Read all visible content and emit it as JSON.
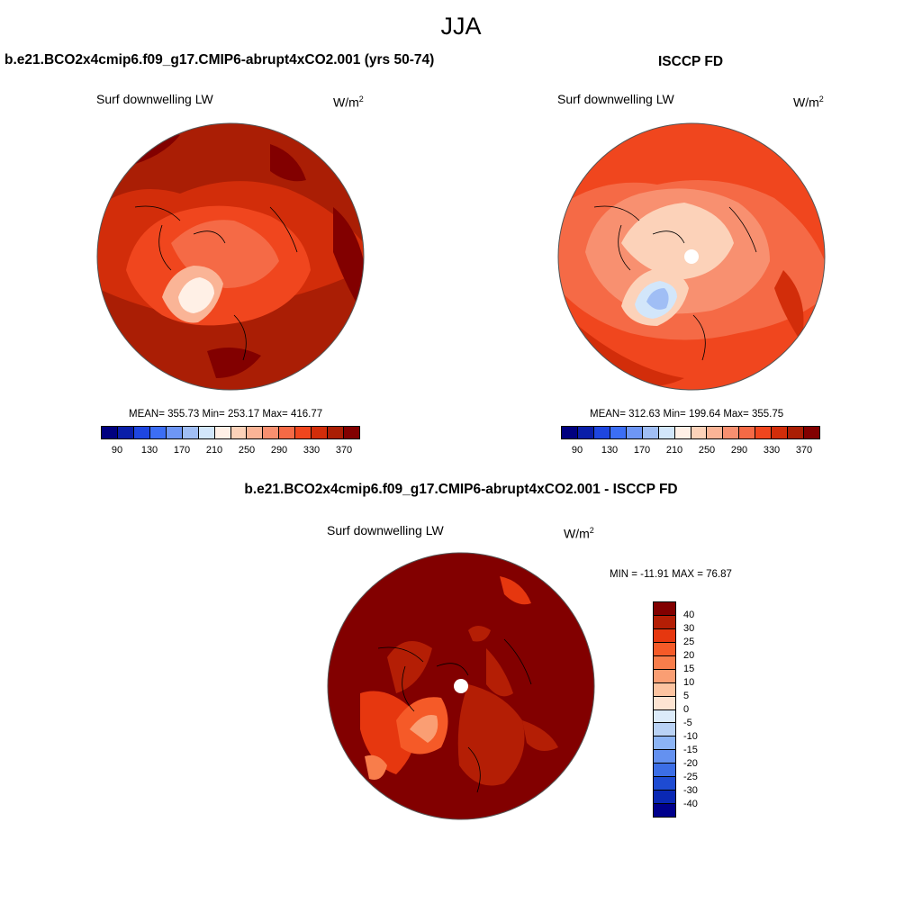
{
  "season": "JJA",
  "panels": {
    "model": {
      "title": "b.e21.BCO2x4cmip6.f09_g17.CMIP6-abrupt4xCO2.001 (yrs 50-74)",
      "variable": "Surf downwelling LW",
      "units_base": "W/m",
      "units_sup": "2",
      "stats": "MEAN= 355.73  Min= 253.17  Max= 416.77",
      "mean": 355.73,
      "min": 253.17,
      "max": 416.77
    },
    "obs": {
      "title": "ISCCP FD",
      "variable": "Surf downwelling LW",
      "units_base": "W/m",
      "units_sup": "2",
      "stats": "MEAN= 312.63  Min= 199.64  Max= 355.75",
      "mean": 312.63,
      "min": 199.64,
      "max": 355.75
    },
    "diff": {
      "title": "b.e21.BCO2x4cmip6.f09_g17.CMIP6-abrupt4xCO2.001 - ISCCP FD",
      "variable": "Surf downwelling LW",
      "units_base": "W/m",
      "units": "2",
      "stats": "MIN = -11.91 MAX =  76.87",
      "min": -11.91,
      "max": 76.87
    }
  },
  "abs_colorbar": {
    "colors": [
      "#00007f",
      "#0a1ea8",
      "#1e46e0",
      "#3c6ef5",
      "#6e96f5",
      "#a0bef5",
      "#d2e6fa",
      "#fff0e6",
      "#fcd2b9",
      "#fab496",
      "#f89070",
      "#f56a46",
      "#f0461e",
      "#d22d0a",
      "#aa1e05",
      "#820000"
    ],
    "tick_labels": [
      "90",
      "130",
      "170",
      "210",
      "250",
      "290",
      "330",
      "370"
    ]
  },
  "diff_colorbar": {
    "colors": [
      "#820000",
      "#b41e05",
      "#e6370f",
      "#f55a28",
      "#f87d4b",
      "#fa9e73",
      "#fcc3a0",
      "#fde4d2",
      "#dcebfa",
      "#b9d2f5",
      "#8cb4f5",
      "#6491f0",
      "#3c6ee6",
      "#1e4bd2",
      "#0a28b4",
      "#00008c"
    ],
    "tick_labels": [
      "40",
      "30",
      "25",
      "20",
      "15",
      "10",
      "5",
      "0",
      "-5",
      "-10",
      "-15",
      "-20",
      "-25",
      "-30",
      "-40"
    ]
  }
}
